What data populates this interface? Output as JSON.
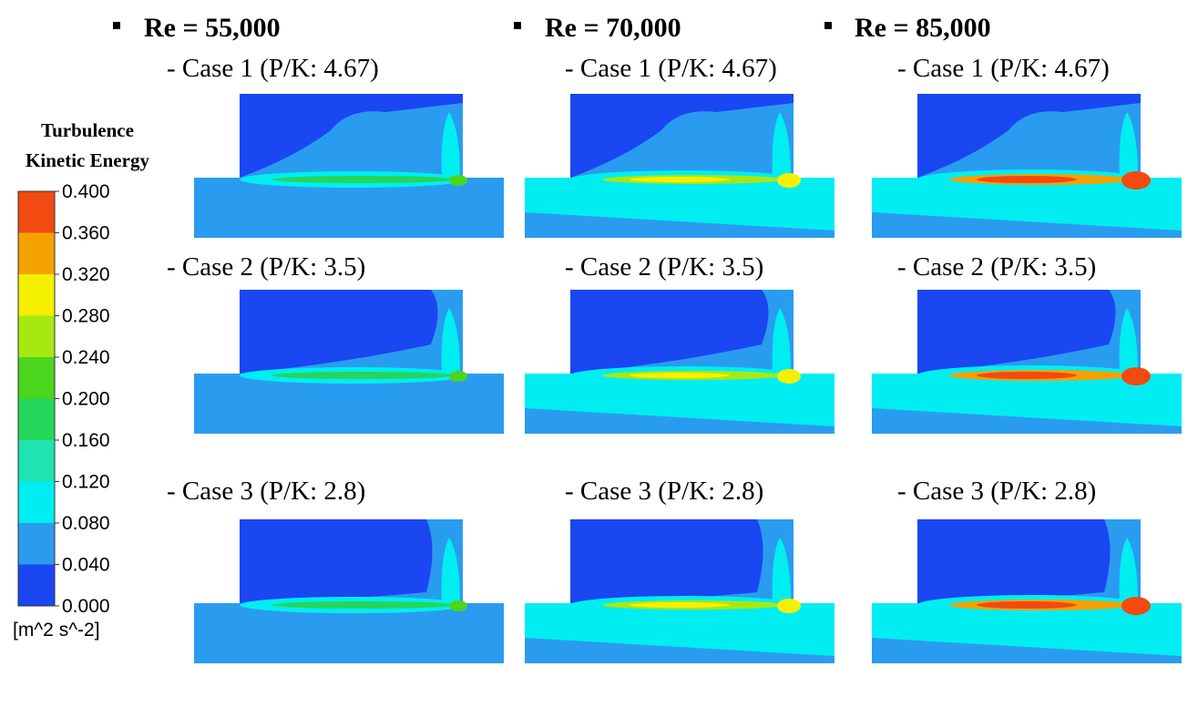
{
  "legend": {
    "title_lines": [
      "Turbulence",
      "Kinetic Energy"
    ],
    "ticks": [
      {
        "value": 0,
        "label": "0.000"
      },
      {
        "value": 0.04,
        "label": "0.040"
      },
      {
        "value": 0.08,
        "label": "0.080"
      },
      {
        "value": 0.12,
        "label": "0.120"
      },
      {
        "value": 0.16,
        "label": "0.160"
      },
      {
        "value": 0.2,
        "label": "0.200"
      },
      {
        "value": 0.24,
        "label": "0.240"
      },
      {
        "value": 0.28,
        "label": "0.280"
      },
      {
        "value": 0.32,
        "label": "0.320"
      },
      {
        "value": 0.36,
        "label": "0.360"
      },
      {
        "value": 0.4,
        "label": "0.400"
      }
    ],
    "unit": "[m^2 s^-2]"
  },
  "columns": [
    {
      "heading": "Re = 55,000",
      "cases": [
        "- Case 1 (P/K: 4.67)",
        "- Case 2 (P/K: 3.5)",
        "- Case 3 (P/K: 2.8)"
      ]
    },
    {
      "heading": "Re = 70,000",
      "cases": [
        "- Case 1 (P/K: 4.67)",
        "- Case 2 (P/K: 3.5)",
        "- Case 3 (P/K: 2.8)"
      ]
    },
    {
      "heading": "Re = 85,000",
      "cases": [
        "- Case 1 (P/K: 4.67)",
        "- Case 2 (P/K: 3.5)",
        "- Case 3 (P/K: 2.8)"
      ]
    }
  ]
}
